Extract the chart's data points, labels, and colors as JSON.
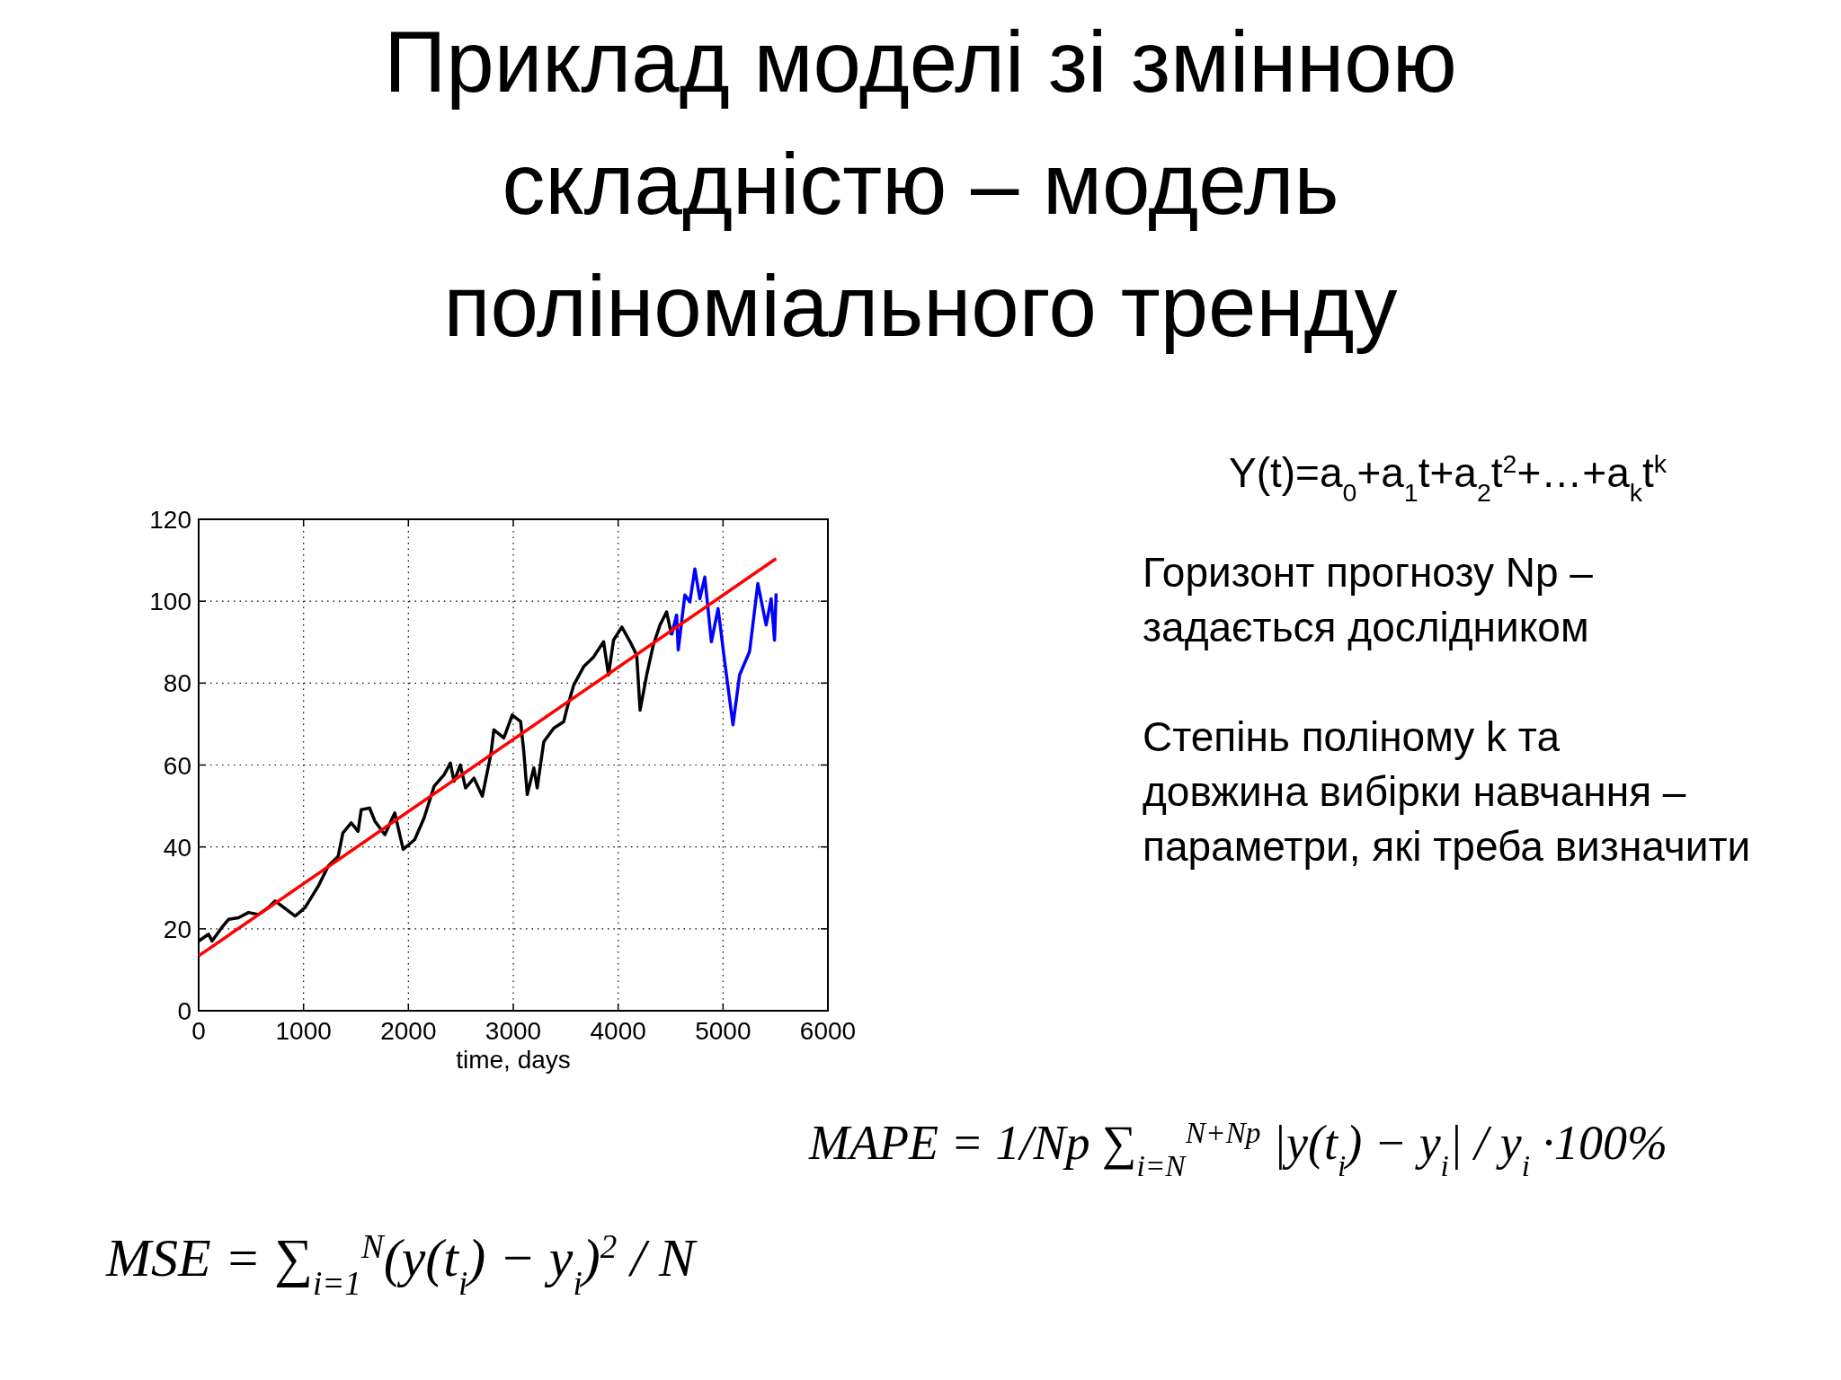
{
  "chart_data": {
    "type": "line",
    "title": "Приклад моделі зі змінною\nскладністю – модель\nполіноміального тренду",
    "xlabel": "time, days",
    "xlim": [
      0,
      6000
    ],
    "ylim": [
      0,
      120
    ],
    "xticks": [
      0,
      1000,
      2000,
      3000,
      4000,
      5000,
      6000
    ],
    "yticks": [
      0,
      20,
      40,
      60,
      80,
      100,
      120
    ],
    "grid": true,
    "series": [
      {
        "color": "#000000",
        "x": [
          0,
          95,
          127,
          220,
          285,
          380,
          475,
          570,
          665,
          730,
          855,
          920,
          1015,
          1140,
          1235,
          1330,
          1375,
          1455,
          1520,
          1550,
          1630,
          1680,
          1775,
          1870,
          1950,
          2060,
          2150,
          2245,
          2340,
          2400,
          2435,
          2495,
          2545,
          2625,
          2705,
          2785,
          2815,
          2910,
          2990,
          3070,
          3100,
          3133,
          3196,
          3228,
          3291,
          3386,
          3481,
          3513,
          3576,
          3671,
          3766,
          3861,
          3908,
          3956,
          4035,
          4114,
          4177,
          4209,
          4272,
          4335,
          4399,
          4462,
          4509
        ],
        "values": [
          17,
          18.7,
          17,
          20.3,
          22.3,
          22.7,
          24,
          23.5,
          25.2,
          26.8,
          24.4,
          23.1,
          25.2,
          30.4,
          35.3,
          37.7,
          43.4,
          45.9,
          43.8,
          49.1,
          49.5,
          46.3,
          43,
          48.3,
          39.4,
          41.8,
          47.1,
          54.8,
          57.6,
          60.5,
          56,
          60,
          54.4,
          56.8,
          52.4,
          62.5,
          68.6,
          66.6,
          72.2,
          70.6,
          63.3,
          52.8,
          59.3,
          54.4,
          65.7,
          69,
          70.6,
          73.9,
          79.5,
          84,
          86.4,
          90.1,
          82,
          90.5,
          93.7,
          90.1,
          86.8,
          73.4,
          82,
          89.3,
          94.2,
          97.4,
          91.7
        ]
      },
      {
        "color": "#0000ff",
        "x": [
          4509,
          4557,
          4573,
          4636,
          4684,
          4731,
          4779,
          4826,
          4889,
          4953,
          5016,
          5095,
          5158,
          5253,
          5332,
          5411,
          5459,
          5491,
          5506
        ],
        "values": [
          91.7,
          96.6,
          88.1,
          101.5,
          99.8,
          107.9,
          100.6,
          105.9,
          90.1,
          98.2,
          85.2,
          69.8,
          82,
          87.7,
          104.3,
          94.2,
          100.6,
          90.5,
          101.9
        ]
      },
      {
        "color": "#ff0000",
        "x": [
          0,
          5506
        ],
        "values": [
          13.4,
          110.4
        ]
      }
    ],
    "annotations": [
      "Y(t)=a$_{0}$+a$_{1}$t+a$_{2}$t$^{2}$+…+a$_{k}$t$^{k}$",
      "Горизонт прогнозу Np –\nзадається дослідником",
      "Степінь поліному k та\nдовжина вибірки навчання –\nпараметри, які треба визначити",
      "MAPE = 1/Np ∑$_{i=N}$$^{N+Np}$ |y(t$_{i}$) − y$_{i}$| / y$_{i}$ ·100%",
      "MSE = ∑$_{i=1}$$^{N}$(y(t$_{i}$) − y$_{i}$)$^{2}$ / N"
    ]
  }
}
